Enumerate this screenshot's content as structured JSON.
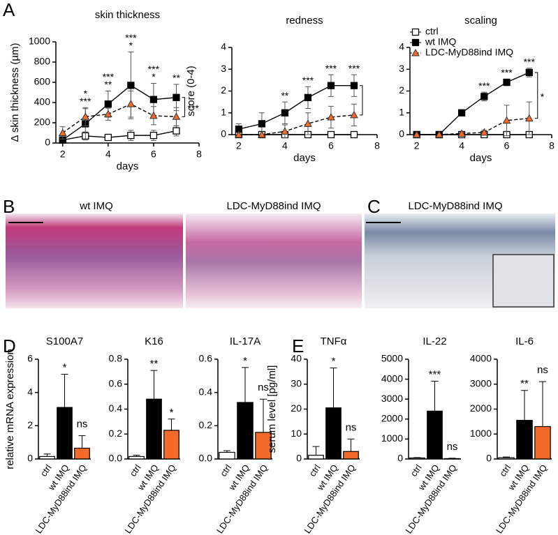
{
  "figure": {
    "panel_labels": [
      "A",
      "B",
      "C",
      "D",
      "E"
    ],
    "image_captions": [
      "wt IMQ",
      "LDC-MyD88ind IMQ",
      "LDC-MyD88ind IMQ"
    ]
  },
  "chart_data": [
    {
      "type": "line",
      "title": "skin thickness",
      "xlabel": "days",
      "ylabel": "Δ skin thickness (µm)",
      "x": [
        2,
        3,
        4,
        5,
        6,
        7
      ],
      "xlim": [
        1.7,
        8
      ],
      "xticks": [
        2,
        4,
        6,
        8
      ],
      "ylim": [
        0,
        1000
      ],
      "yticks": [
        0,
        200,
        400,
        600,
        800,
        1000
      ],
      "series": [
        {
          "name": "ctrl",
          "color": "#000000",
          "marker": "square-open",
          "dash": false,
          "values": [
            30,
            70,
            55,
            75,
            75,
            120
          ],
          "errors": [
            20,
            40,
            30,
            50,
            50,
            50
          ]
        },
        {
          "name": "wt IMQ",
          "color": "#000000",
          "marker": "square",
          "dash": false,
          "values": [
            30,
            190,
            385,
            570,
            430,
            450
          ],
          "errors": [
            20,
            150,
            130,
            330,
            160,
            130
          ]
        },
        {
          "name": "LDC-MyD88ind IMQ",
          "color": "#f26b2a",
          "marker": "triangle",
          "dash": true,
          "values": [
            100,
            260,
            285,
            385,
            270,
            260
          ],
          "errors": [
            60,
            90,
            60,
            130,
            90,
            90
          ]
        }
      ],
      "significance": [
        null,
        [
          "***",
          "*"
        ],
        [
          "**",
          "***"
        ],
        [
          "*",
          "***"
        ],
        [
          "*",
          "***"
        ],
        [
          "**"
        ]
      ],
      "bracket": true,
      "bracket_label": "***"
    },
    {
      "type": "line",
      "title": "redness",
      "xlabel": "days",
      "ylabel": "score (0-4)",
      "x": [
        2,
        3,
        4,
        5,
        6,
        7
      ],
      "xlim": [
        1.7,
        8
      ],
      "xticks": [
        2,
        4,
        6,
        8
      ],
      "ylim": [
        0,
        4
      ],
      "yticks": [
        0,
        1,
        2,
        3,
        4
      ],
      "series": [
        {
          "name": "ctrl",
          "color": "#000000",
          "marker": "square-open",
          "dash": false,
          "values": [
            0,
            0,
            0,
            0,
            0,
            0
          ],
          "errors": [
            0,
            0,
            0,
            0,
            0,
            0
          ]
        },
        {
          "name": "wt IMQ",
          "color": "#000000",
          "marker": "square",
          "dash": false,
          "values": [
            0.25,
            0.5,
            1.0,
            1.7,
            2.25,
            2.25
          ],
          "errors": [
            0.25,
            0.5,
            0.5,
            0.5,
            0.5,
            0.5
          ]
        },
        {
          "name": "LDC-MyD88ind IMQ",
          "color": "#f26b2a",
          "marker": "triangle",
          "dash": true,
          "values": [
            0,
            0,
            0.15,
            0.5,
            0.8,
            0.9
          ],
          "errors": [
            0,
            0,
            0.3,
            0.5,
            0.5,
            0.5
          ]
        }
      ],
      "significance": [
        null,
        null,
        [
          "**"
        ],
        [
          "***"
        ],
        [
          "***"
        ],
        [
          "***"
        ]
      ],
      "bracket": true
    },
    {
      "type": "line",
      "title": "scaling",
      "xlabel": "days",
      "legend": "top-left",
      "x": [
        2,
        3,
        4,
        5,
        6,
        7
      ],
      "xlim": [
        1.7,
        8
      ],
      "xticks": [
        2,
        4,
        6,
        8
      ],
      "ylim": [
        0,
        4
      ],
      "yticks": [
        0,
        1,
        2,
        3,
        4
      ],
      "series": [
        {
          "name": "ctrl",
          "color": "#000000",
          "marker": "square-open",
          "dash": false,
          "values": [
            0,
            0,
            0,
            0,
            0,
            0
          ],
          "errors": [
            0,
            0,
            0,
            0,
            0,
            0
          ]
        },
        {
          "name": "wt IMQ",
          "color": "#000000",
          "marker": "square",
          "dash": false,
          "values": [
            0,
            0,
            1.0,
            1.75,
            2.4,
            2.85
          ],
          "errors": [
            0,
            0,
            0.1,
            0.2,
            0.15,
            0.2
          ]
        },
        {
          "name": "LDC-MyD88ind IMQ",
          "color": "#f26b2a",
          "marker": "triangle",
          "dash": true,
          "values": [
            0,
            0,
            0.05,
            0.1,
            0.65,
            0.75
          ],
          "errors": [
            0,
            0,
            0.05,
            0.1,
            0.7,
            0.75
          ]
        }
      ],
      "significance": [
        null,
        null,
        null,
        [
          "***"
        ],
        [
          "***"
        ],
        [
          "***"
        ]
      ],
      "bracket": true,
      "bracket_label": "*"
    },
    {
      "type": "bar",
      "title": "S100A7",
      "ylabel": "relative mRNA expression",
      "categories": [
        "ctrl",
        "wt IMQ",
        "LDC-MyD88ind IMQ"
      ],
      "colors": [
        "#ffffff",
        "#000000",
        "#f26b2a"
      ],
      "values": [
        0.15,
        3.1,
        0.65
      ],
      "errors": [
        0.15,
        2.0,
        0.75
      ],
      "ylim": [
        0,
        6
      ],
      "yticks": [
        0,
        2,
        4,
        6
      ],
      "significance": [
        null,
        "*",
        "ns"
      ]
    },
    {
      "type": "bar",
      "title": "K16",
      "categories": [
        "ctrl",
        "wt IMQ",
        "LDC-MyD88ind IMQ"
      ],
      "colors": [
        "#ffffff",
        "#000000",
        "#f26b2a"
      ],
      "values": [
        0.02,
        0.48,
        0.23
      ],
      "errors": [
        0.01,
        0.23,
        0.09
      ],
      "ylim": [
        0,
        0.8
      ],
      "yticks": [
        {
          "value": 0,
          "label": "0.0"
        },
        0.2,
        0.4,
        0.6,
        0.8
      ],
      "significance": [
        null,
        "**",
        "*"
      ]
    },
    {
      "type": "bar",
      "title": "IL-17A",
      "categories": [
        "ctrl",
        "wt IMQ",
        "LDC-MyD88ind IMQ"
      ],
      "colors": [
        "#ffffff",
        "#000000",
        "#f26b2a"
      ],
      "values": [
        0.04,
        0.34,
        0.16
      ],
      "errors": [
        0.01,
        0.21,
        0.2
      ],
      "ylim": [
        0,
        0.6
      ],
      "yticks": [
        {
          "value": 0,
          "label": "0.0"
        },
        0.2,
        0.4,
        0.6
      ],
      "significance": [
        null,
        "*",
        "ns"
      ]
    },
    {
      "type": "bar",
      "title": "TNFα",
      "ylabel": "serum level [pg/ml]",
      "categories": [
        "ctrl",
        "wt IMQ",
        "LDC-MyD88ind IMQ"
      ],
      "colors": [
        "#ffffff",
        "#000000",
        "#f26b2a"
      ],
      "values": [
        1.5,
        20.5,
        3
      ],
      "errors": [
        3.5,
        16,
        5
      ],
      "ylim": [
        0,
        40
      ],
      "yticks": [
        0,
        10,
        20,
        30,
        40
      ],
      "significance": [
        null,
        "*",
        "ns"
      ]
    },
    {
      "type": "bar",
      "title": "IL-22",
      "categories": [
        "ctrl",
        "wt IMQ",
        "LDC-MyD88ind IMQ"
      ],
      "colors": [
        "#ffffff",
        "#000000",
        "#f26b2a"
      ],
      "values": [
        50,
        2400,
        20
      ],
      "errors": [
        20,
        1500,
        20
      ],
      "ylim": [
        0,
        5000
      ],
      "yticks": [
        0,
        1000,
        2000,
        3000,
        4000,
        5000
      ],
      "significance": [
        null,
        "***",
        "ns"
      ]
    },
    {
      "type": "bar",
      "title": "IL-6",
      "categories": [
        "ctrl",
        "wt IMQ",
        "LDC-MyD88ind IMQ"
      ],
      "colors": [
        "#ffffff",
        "#000000",
        "#f26b2a"
      ],
      "values": [
        50,
        1550,
        1300
      ],
      "errors": [
        30,
        1200,
        1800
      ],
      "ylim": [
        0,
        4000
      ],
      "yticks": [
        0,
        1000,
        2000,
        3000,
        4000
      ],
      "significance": [
        null,
        "**",
        "ns"
      ]
    }
  ]
}
